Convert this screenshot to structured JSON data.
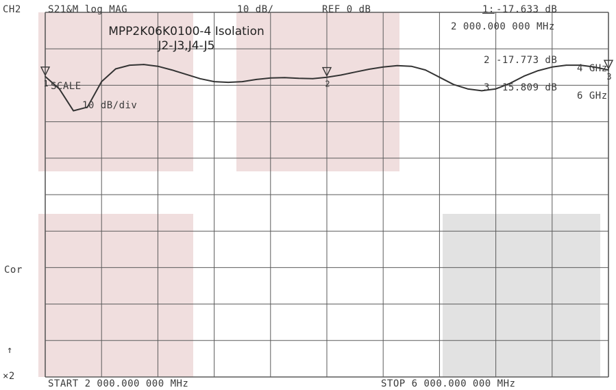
{
  "header": {
    "channel": "CH2",
    "measurement": "S21&M log MAG",
    "scale": "10 dB/",
    "ref": "REF 0 dB"
  },
  "markers": {
    "m1_label": "1:",
    "m1_value": "-17.633 dB",
    "m1_freq": "2 000.000 000 MHz",
    "m2_label": "2",
    "m2_value": "-17.773 dB",
    "m2_freq": "4 GHz",
    "m3_label": "3",
    "m3_value": "-15.809 dB",
    "m3_freq": "6 GHz"
  },
  "annotation": {
    "title_line1": "MPP2K06K0100-4 Isolation",
    "title_line2": "J2-J3,J4-J5"
  },
  "scale_box": {
    "label": "SCALE",
    "value": "10 dB/div"
  },
  "left_labels": {
    "cor": "Cor",
    "arrow": "↑",
    "x2": "×2"
  },
  "footer": {
    "start": "START 2 000.000 000 MHz",
    "stop": "STOP 6 000.000 000 MHz"
  },
  "colors": {
    "grid": "#5a5a5a",
    "trace": "#333333",
    "highlight_pink": "#f0dede",
    "highlight_gray": "#e2e2e2"
  },
  "chart_data": {
    "type": "line",
    "title": "MPP2K06K0100-4 Isolation J2-J3,J4-J5",
    "xlabel": "",
    "ylabel": "",
    "x_unit": "GHz",
    "y_unit": "dB",
    "xlim": [
      2,
      6
    ],
    "ylim": [
      -100,
      0
    ],
    "grid": true,
    "series": [
      {
        "x": [
          2.0,
          2.1,
          2.2,
          2.3,
          2.4,
          2.5,
          2.6,
          2.7,
          2.8,
          2.9,
          3.0,
          3.1,
          3.2,
          3.3,
          3.4,
          3.5,
          3.6,
          3.7,
          3.8,
          3.9,
          4.0,
          4.1,
          4.2,
          4.3,
          4.4,
          4.5,
          4.6,
          4.7,
          4.8,
          4.9,
          5.0,
          5.1,
          5.2,
          5.3,
          5.4,
          5.5,
          5.6,
          5.7,
          5.8,
          5.9,
          6.0
        ],
        "y": [
          -17.6,
          -21.0,
          -27.0,
          -26.0,
          -19.0,
          -15.5,
          -14.5,
          -14.3,
          -14.8,
          -15.8,
          -17.0,
          -18.2,
          -19.0,
          -19.2,
          -19.0,
          -18.4,
          -18.0,
          -17.9,
          -18.1,
          -18.2,
          -17.8,
          -17.2,
          -16.4,
          -15.6,
          -15.0,
          -14.6,
          -14.8,
          -15.8,
          -17.8,
          -19.8,
          -21.0,
          -21.5,
          -21.0,
          -19.5,
          -17.5,
          -16.0,
          -15.0,
          -14.5,
          -14.5,
          -15.0,
          -15.8
        ]
      }
    ],
    "markers": [
      {
        "id": "1",
        "x": 2.0,
        "y": -17.633
      },
      {
        "id": "2",
        "x": 4.0,
        "y": -17.773
      },
      {
        "id": "3",
        "x": 6.0,
        "y": -15.809
      }
    ]
  }
}
